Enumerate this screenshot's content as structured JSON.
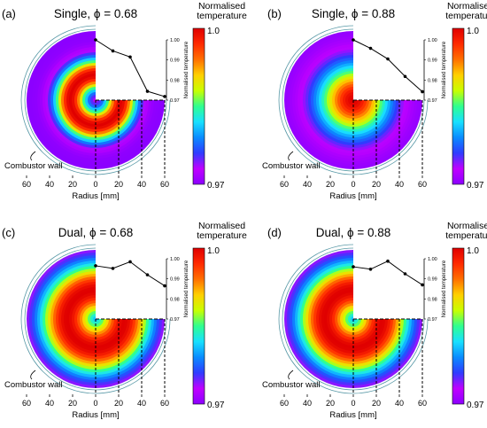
{
  "figure": {
    "colormap": [
      "#8b00ff",
      "#c000ff",
      "#2f3cff",
      "#0a8cff",
      "#18e0ff",
      "#2fff90",
      "#c8ff00",
      "#ffd000",
      "#ff7000",
      "#ff2a00",
      "#e00000"
    ],
    "colorbar_title": "Normalised\ntemperature",
    "colorbar_max_label": "1.0",
    "colorbar_min_label": "0.97",
    "x_axis_label": "Radius [mm]",
    "x_tick_labels": [
      "60",
      "40",
      "20",
      "0",
      "20",
      "40",
      "60"
    ],
    "wall_label": "Combustor wall",
    "line_axis_label": "Normalised temperature",
    "line_tick_labels": [
      "1.00",
      "0.99",
      "0.98",
      "0.97"
    ]
  },
  "chart_data": [
    {
      "type": "line",
      "panel_label": "(a)",
      "title": "Single, ϕ = 0.68",
      "x": [
        0,
        15,
        30,
        45,
        60
      ],
      "y": [
        1.0,
        0.9945,
        0.9915,
        0.9744,
        0.9718
      ],
      "ylim": [
        0.97,
        1.0
      ],
      "xlabel": "Radius [mm]",
      "ylabel": "Normalised temperature",
      "heatmap": {
        "peak_radius_mm": 22,
        "peak_width_mm": 14,
        "min_value": 0.97,
        "max_value": 1.0
      }
    },
    {
      "type": "line",
      "panel_label": "(b)",
      "title": "Single, ϕ = 0.88",
      "x": [
        0,
        15,
        30,
        45,
        60
      ],
      "y": [
        1.0,
        0.9958,
        0.9905,
        0.9818,
        0.9742
      ],
      "ylim": [
        0.97,
        1.0
      ],
      "xlabel": "Radius [mm]",
      "ylabel": "Normalised temperature",
      "heatmap": {
        "peak_radius_mm": 0,
        "peak_width_mm": 30,
        "min_value": 0.97,
        "max_value": 1.0
      }
    },
    {
      "type": "line",
      "panel_label": "(c)",
      "title": "Dual, ϕ = 0.68",
      "x": [
        0,
        15,
        30,
        45,
        60
      ],
      "y": [
        0.9965,
        0.9952,
        0.9985,
        0.992,
        0.9865
      ],
      "ylim": [
        0.97,
        1.0
      ],
      "xlabel": "Radius [mm]",
      "ylabel": "Normalised temperature",
      "heatmap": {
        "peak_radius_mm": 25,
        "peak_width_mm": 24,
        "min_value": 0.97,
        "max_value": 1.0
      }
    },
    {
      "type": "line",
      "panel_label": "(d)",
      "title": "Dual, ϕ = 0.88",
      "x": [
        0,
        15,
        30,
        45,
        60
      ],
      "y": [
        0.996,
        0.9948,
        0.9988,
        0.9925,
        0.987
      ],
      "ylim": [
        0.97,
        1.0
      ],
      "xlabel": "Radius [mm]",
      "ylabel": "Normalised temperature",
      "heatmap": {
        "peak_radius_mm": 25,
        "peak_width_mm": 24,
        "min_value": 0.97,
        "max_value": 1.0
      }
    }
  ]
}
